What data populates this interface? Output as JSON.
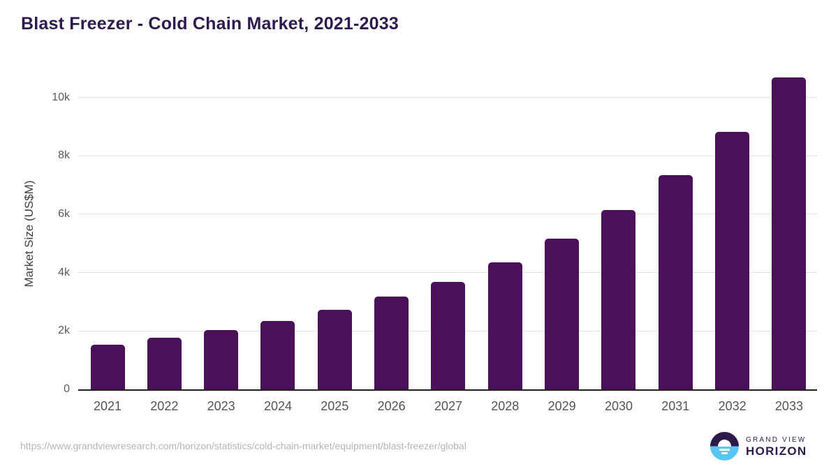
{
  "title": "Blast Freezer - Cold Chain Market, 2021-2033",
  "source_url": "https://www.grandviewresearch.com/horizon/statistics/cold-chain-market/equipment/blast-freezer/global",
  "branding": {
    "name_top": "GRAND VIEW",
    "name_bottom": "HORIZON"
  },
  "colors": {
    "bar": "#4a1158",
    "title_text": "#2e1a4e",
    "axis_line": "#1f1f1f",
    "gridline": "#e3e3e3",
    "tick_label": "#5a5a5a",
    "url_text": "#b5b5b5",
    "logo_dark": "#2b1a4a",
    "logo_blue": "#58c6f2"
  },
  "chart_data": {
    "type": "bar",
    "title": "Blast Freezer - Cold Chain Market, 2021-2033",
    "categories": [
      "2021",
      "2022",
      "2023",
      "2024",
      "2025",
      "2026",
      "2027",
      "2028",
      "2029",
      "2030",
      "2031",
      "2032",
      "2033"
    ],
    "values": [
      1540,
      1760,
      2040,
      2340,
      2720,
      3170,
      3680,
      4340,
      5150,
      6150,
      7340,
      8820,
      10670
    ],
    "xlabel": "",
    "ylabel": "Market Size (US$M)",
    "ylim": [
      0,
      11000
    ],
    "yticks": [
      {
        "value": 0,
        "label": "0"
      },
      {
        "value": 2000,
        "label": "2k"
      },
      {
        "value": 4000,
        "label": "4k"
      },
      {
        "value": 6000,
        "label": "6k"
      },
      {
        "value": 8000,
        "label": "8k"
      },
      {
        "value": 10000,
        "label": "10k"
      }
    ],
    "grid": true,
    "legend": false
  }
}
